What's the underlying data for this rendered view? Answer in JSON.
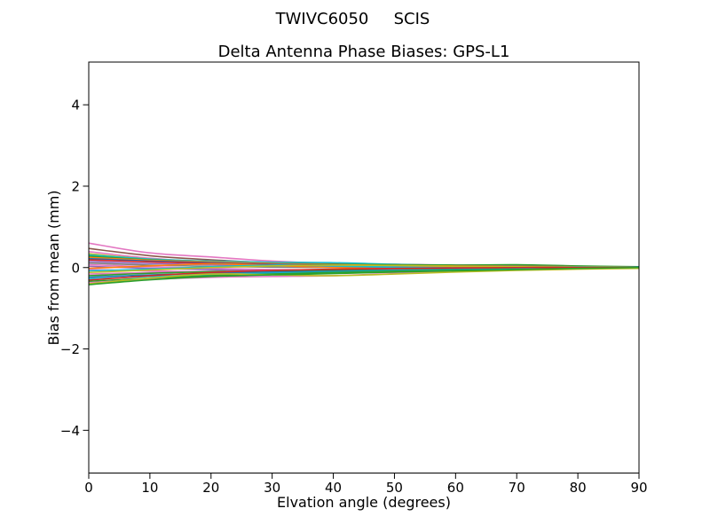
{
  "figure": {
    "background": "#ffffff",
    "suptitle_left": "TWIVC6050",
    "suptitle_right": "SCIS"
  },
  "chart_data": {
    "type": "line",
    "title": "Delta Antenna Phase Biases: GPS-L1",
    "suptitle": "TWIVC6050        SCIS",
    "xlabel": "Elvation angle (degrees)",
    "ylabel": "Bias from mean (mm)",
    "xlim": [
      0,
      90
    ],
    "ylim": [
      -5.05,
      5.05
    ],
    "xticks": [
      0,
      10,
      20,
      30,
      40,
      50,
      60,
      70,
      80,
      90
    ],
    "yticks": [
      -4,
      -2,
      0,
      2,
      4
    ],
    "grid": false,
    "legend_position": "none",
    "axis_color": "#000000",
    "line_width": 1.6,
    "x": [
      0,
      10,
      20,
      30,
      40,
      50,
      60,
      70,
      80,
      90
    ],
    "series": [
      {
        "color": "#e377c2",
        "values": [
          0.6,
          0.36,
          0.26,
          0.16,
          0.1,
          0.08,
          0.06,
          0.05,
          0.03,
          0.01
        ]
      },
      {
        "color": "#8c564b",
        "values": [
          0.47,
          0.29,
          0.19,
          0.12,
          0.09,
          0.07,
          0.06,
          0.06,
          0.03,
          0.01
        ]
      },
      {
        "color": "#e377c2",
        "values": [
          0.39,
          0.23,
          0.13,
          0.06,
          0.02,
          0.0,
          0.01,
          0.02,
          0.01,
          0.0
        ]
      },
      {
        "color": "#bcbd22",
        "values": [
          0.34,
          0.21,
          0.15,
          0.1,
          0.06,
          0.03,
          0.02,
          0.04,
          0.02,
          0.01
        ]
      },
      {
        "color": "#17becf",
        "values": [
          0.31,
          0.21,
          0.16,
          0.13,
          0.12,
          0.08,
          0.05,
          0.05,
          0.03,
          0.01
        ]
      },
      {
        "color": "#2ca02c",
        "values": [
          0.28,
          0.19,
          0.14,
          0.1,
          0.08,
          0.07,
          0.06,
          0.07,
          0.04,
          0.02
        ]
      },
      {
        "color": "#ff7f0e",
        "values": [
          0.25,
          0.18,
          0.14,
          0.1,
          0.07,
          0.05,
          0.04,
          0.04,
          0.02,
          0.01
        ]
      },
      {
        "color": "#1f77b4",
        "values": [
          0.22,
          0.16,
          0.12,
          0.08,
          0.06,
          0.04,
          0.03,
          0.03,
          0.02,
          0.01
        ]
      },
      {
        "color": "#d62728",
        "values": [
          0.19,
          0.14,
          0.1,
          0.07,
          0.05,
          0.03,
          0.02,
          0.02,
          0.01,
          0.0
        ]
      },
      {
        "color": "#9467bd",
        "values": [
          0.15,
          0.1,
          0.07,
          0.05,
          0.03,
          0.02,
          0.01,
          0.01,
          0.01,
          0.0
        ]
      },
      {
        "color": "#7f7f7f",
        "values": [
          0.11,
          0.06,
          0.03,
          0.01,
          0.0,
          0.0,
          0.0,
          0.01,
          0.0,
          0.0
        ]
      },
      {
        "color": "#e377c2",
        "values": [
          0.07,
          0.02,
          -0.02,
          -0.05,
          -0.06,
          -0.05,
          -0.03,
          -0.01,
          0.0,
          0.0
        ]
      },
      {
        "color": "#9467bd",
        "values": [
          0.03,
          -0.02,
          -0.05,
          -0.08,
          -0.09,
          -0.08,
          -0.06,
          -0.03,
          -0.01,
          0.0
        ]
      },
      {
        "color": "#ff7f0e",
        "values": [
          -0.02,
          0.04,
          0.09,
          0.05,
          0.0,
          -0.03,
          -0.02,
          0.0,
          0.01,
          0.0
        ]
      },
      {
        "color": "#e377c2",
        "values": [
          -0.05,
          -0.08,
          -0.11,
          -0.13,
          -0.13,
          -0.12,
          -0.09,
          -0.05,
          -0.02,
          -0.01
        ]
      },
      {
        "color": "#17becf",
        "values": [
          -0.08,
          -0.04,
          0.02,
          0.06,
          0.04,
          0.01,
          -0.01,
          0.0,
          0.01,
          0.0
        ]
      },
      {
        "color": "#bcbd22",
        "values": [
          -0.12,
          -0.06,
          0.0,
          0.04,
          0.06,
          0.05,
          0.03,
          0.02,
          0.01,
          0.0
        ]
      },
      {
        "color": "#e377c2",
        "values": [
          -0.16,
          -0.12,
          -0.09,
          -0.07,
          -0.06,
          -0.05,
          -0.04,
          -0.02,
          -0.01,
          0.0
        ]
      },
      {
        "color": "#2ca02c",
        "values": [
          -0.2,
          -0.14,
          -0.1,
          -0.08,
          -0.07,
          -0.06,
          -0.04,
          -0.03,
          -0.02,
          -0.01
        ]
      },
      {
        "color": "#1f77b4",
        "values": [
          -0.24,
          -0.18,
          -0.14,
          -0.11,
          -0.09,
          -0.07,
          -0.05,
          -0.04,
          -0.02,
          -0.01
        ]
      },
      {
        "color": "#17becf",
        "values": [
          -0.28,
          -0.22,
          -0.17,
          -0.14,
          -0.11,
          -0.08,
          -0.06,
          -0.04,
          -0.02,
          -0.01
        ]
      },
      {
        "color": "#d62728",
        "values": [
          -0.31,
          -0.2,
          -0.12,
          -0.07,
          -0.04,
          -0.02,
          -0.01,
          0.0,
          0.0,
          0.0
        ]
      },
      {
        "color": "#2ca02c",
        "values": [
          -0.34,
          -0.26,
          -0.2,
          -0.16,
          -0.12,
          -0.09,
          -0.07,
          -0.05,
          -0.03,
          -0.01
        ]
      },
      {
        "color": "#e377c2",
        "values": [
          -0.37,
          -0.29,
          -0.24,
          -0.22,
          -0.2,
          -0.15,
          -0.1,
          -0.06,
          -0.03,
          -0.01
        ]
      },
      {
        "color": "#bcbd22",
        "values": [
          -0.4,
          -0.26,
          -0.16,
          -0.18,
          -0.2,
          -0.16,
          -0.11,
          -0.07,
          -0.04,
          -0.02
        ]
      },
      {
        "color": "#2ca02c",
        "values": [
          -0.42,
          -0.3,
          -0.22,
          -0.18,
          -0.15,
          -0.11,
          -0.08,
          -0.05,
          -0.02,
          0.0
        ]
      }
    ]
  }
}
